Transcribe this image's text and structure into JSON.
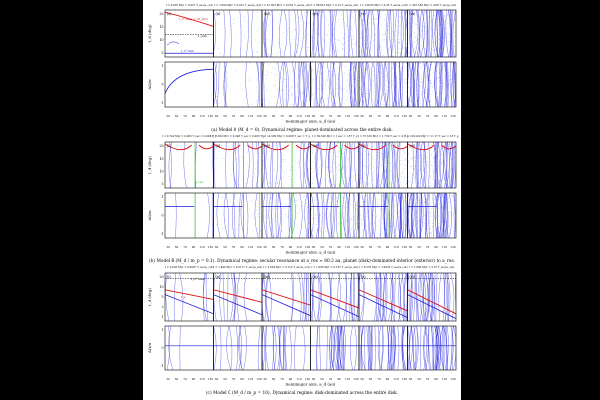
{
  "figure": {
    "xlabel": "Semimajor axis, a_d (au)",
    "x_ticks": [
      "30",
      "50",
      "70",
      "90",
      "110",
      "130"
    ],
    "panel_labels": [
      "(i)",
      "(ii)",
      "(iii)",
      "(iv)",
      "(v)",
      "(vi)"
    ],
    "ylabel_top": "I_d (deg)",
    "ylabel_bottom": "ΔΩ/π",
    "colors": {
      "disk": "#1a1adc",
      "planet": "#e01010",
      "resonance": "#22bb22",
      "frame": "#000000"
    }
  },
  "rows": [
    {
      "id": "A",
      "time_labels": [
        "t = 0.435 Myr = 0.007 T_sec(a_out)",
        "t = 7.060 Myr = 0.012 T_sec(a_out)",
        "t = 31.503 Myr = 0.052 T_sec(a_out)",
        "t = 89.813 Myr = 0.15 T_sec(a_out)",
        "t = 130.63 Myr = 0.23 T_sec(a_out)",
        "t = 437.563 Myr = 0.68 T_sec(a_out)"
      ],
      "y_ticks_top": [
        "20",
        "15",
        "10",
        "5"
      ],
      "y_ticks_bottom": [
        "1",
        "0",
        "-1"
      ],
      "annotations": {
        "planet_curve": "I_d^max = 2I_p(0)",
        "dashed_line": "I_p(0)",
        "min_curve": "I_d^min"
      },
      "caption_label": "(a) Model",
      "caption_model": "A",
      "caption_params": "(M_d = 0).",
      "caption_text": "Dynamical regime: planet-dominated across the entire disk."
    },
    {
      "id": "B",
      "time_labels": [
        "t = 0.724 Myr = 0.003 T_sec = 0.001 T_p",
        "t = 7.509 Myr = 0.348 T_sec = 0.003 T_p",
        "t = 14.509 Myr = 0.008 T_sec = T_p",
        "t = 39.528 Myr = t_sec = 1.67 T_p",
        "t = 37.610 Myr = 1.730 T_sec = 4 T_p",
        "t = 129.220 Myr = 11.17 T_sec = 18 T_p"
      ],
      "y_ticks_top": [
        "20",
        "15",
        "10",
        "5"
      ],
      "y_ticks_bottom": [
        "1",
        "0",
        "-1"
      ],
      "annotations": {
        "resonance_label": "a_res"
      },
      "caption_label": "(b) Model",
      "caption_model": "B",
      "caption_params": "(M_d / m_p = 0.1).",
      "caption_text": "Dynamical regime: secular resonance at a_res ≈ 80.2 au, planet (disk)-dominated interior (exterior) to a_res."
    },
    {
      "id": "C",
      "time_labels": [
        "t = 0.003 Myr = 0.0007 T_sec(a_out)",
        "t = 1.499 Myr = 0.0177 T_sec(a_out)",
        "t = 5.034 Myr = 0.110 T_sec(a_out)",
        "t = 1.093 Myr = 0.187 T_sec(a_out)",
        "t = 6.576 Myr = 1.0035 T_sec(a_out)",
        "t = 1.000 Myr = 2.37 T_sec(a_out)"
      ],
      "y_ticks_top": [
        "20",
        "10",
        "5",
        "2",
        "1"
      ],
      "y_ticks_bottom": [
        "1",
        "0",
        "-1"
      ],
      "annotations": {
        "top_label": "I_d^max",
        "planet_label": "I_p"
      },
      "caption_label": "(c) Model",
      "caption_model": "C",
      "caption_params": "(M_d / m_p = 10).",
      "caption_text": "Dynamical regime: disk-dominated across the entire disk."
    }
  ]
}
